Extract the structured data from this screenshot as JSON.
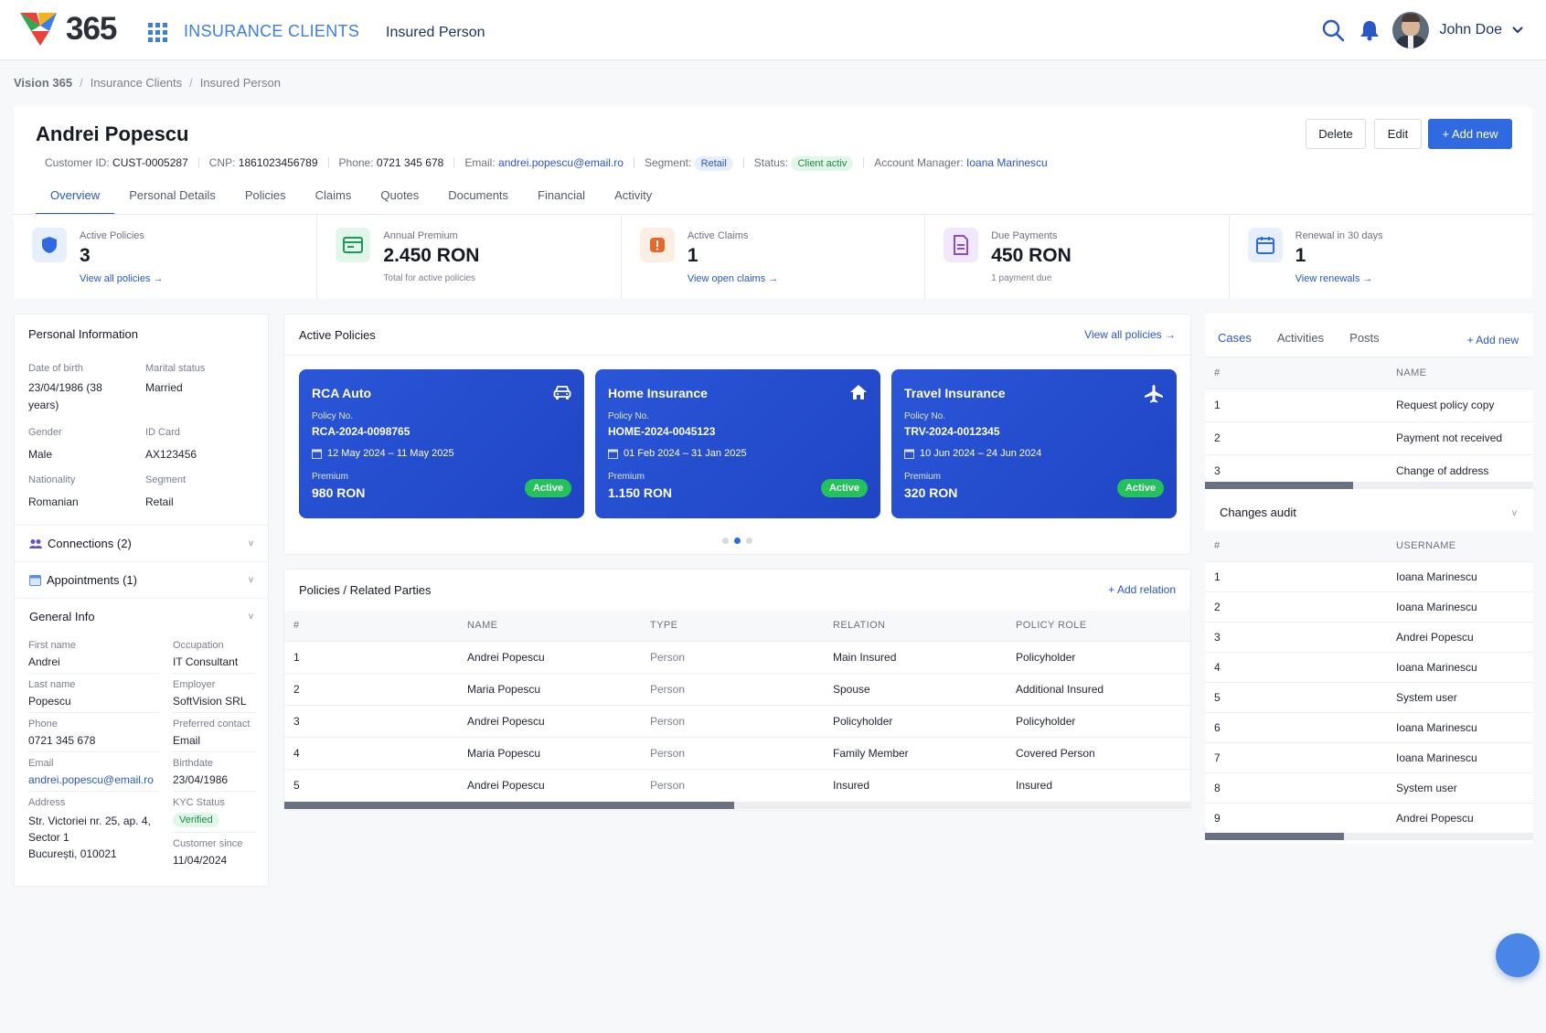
{
  "app": {
    "logo_text": "365",
    "app_name": "INSURANCE CLIENTS",
    "nav_title": "Insured Person",
    "user_name": "John Doe"
  },
  "breadcrumb": [
    "Vision 365",
    "Insurance Clients",
    "Insured Person"
  ],
  "customer": {
    "name": "Andrei Popescu",
    "meta": {
      "customer_id_label": "Customer ID:",
      "customer_id": "CUST-0005287",
      "cnp_label": "CNP:",
      "cnp": "1861023456789",
      "phone_label": "Phone:",
      "phone": "0721 345 678",
      "email_label": "Email:",
      "email": "andrei.popescu@email.ro",
      "segment_label": "Segment:",
      "segment": "Retail",
      "status_label": "Status:",
      "status": "Client activ",
      "manager_label": "Account Manager:",
      "manager": "Ioana Marinescu"
    }
  },
  "actions": {
    "delete": "Delete",
    "edit": "Edit",
    "add_new": "+ Add new"
  },
  "tabs": [
    "Overview",
    "Personal Details",
    "Policies",
    "Claims",
    "Quotes",
    "Documents",
    "Financial",
    "Activity"
  ],
  "kpis": [
    {
      "label": "Active Policies",
      "value": "3",
      "link": "View all policies →",
      "color": "#2f6ae0",
      "bg": "#e8effc",
      "icon": "shield-icon"
    },
    {
      "label": "Annual Premium",
      "value": "2.450 RON",
      "sub": "Total for active policies",
      "color": "#1d9a5a",
      "bg": "#e3f6ea",
      "icon": "card-icon"
    },
    {
      "label": "Active Claims",
      "value": "1",
      "link": "View open claims →",
      "color": "#e8672a",
      "bg": "#fdeee3",
      "icon": "alert-icon"
    },
    {
      "label": "Due Payments",
      "value": "450 RON",
      "sub": "1 payment due",
      "color": "#8a4bd6",
      "bg": "#f1e9fb",
      "icon": "invoice-icon"
    },
    {
      "label": "Renewal in 30 days",
      "value": "1",
      "link": "View renewals →",
      "color": "#2f6ae0",
      "bg": "#e8effc",
      "icon": "calendar-icon"
    }
  ],
  "personal_info": {
    "title": "Personal Information",
    "fields": [
      {
        "label": "Date of birth",
        "value": "23/04/1986 (38 years)"
      },
      {
        "label": "Marital status",
        "value": "Married"
      },
      {
        "label": "Gender",
        "value": "Male"
      },
      {
        "label": "ID Card",
        "value": "AX123456"
      },
      {
        "label": "Nationality",
        "value": "Romanian"
      },
      {
        "label": "Segment",
        "value": "Retail"
      }
    ]
  },
  "connections": {
    "label": "Connections (2)"
  },
  "appointments": {
    "label": "Appointments (1)"
  },
  "general_info": {
    "title": "General Info",
    "first_name_label": "First name",
    "first_name": "Andrei",
    "occupation_label": "Occupation",
    "occupation": "IT Consultant",
    "last_name_label": "Last name",
    "last_name": "Popescu",
    "employer_label": "Employer",
    "employer": "SoftVision SRL",
    "phone_label": "Phone",
    "phone": "0721 345 678",
    "preferred_label": "Preferred contact",
    "preferred": "Email",
    "email_label": "Email",
    "email": "andrei.popescu@email.ro",
    "birthdate_label": "Birthdate",
    "birthdate": "23/04/1986",
    "address_label": "Address",
    "address_1": "Str. Victoriei nr. 25, ap. 4,",
    "address_2": "Sector 1",
    "address_3": "București, 010021",
    "kyc_label": "KYC Status",
    "kyc": "Verified",
    "since_label": "Customer since",
    "since": "11/04/2024"
  },
  "active_policies": {
    "title": "Active Policies",
    "link": "View all policies →",
    "policy_no_label": "Policy No.",
    "premium_label": "Premium",
    "cards": [
      {
        "title": "RCA Auto",
        "policy_no": "RCA-2024-0098765",
        "dates": "12 May 2024 – 11 May 2025",
        "premium": "980 RON",
        "status": "Active",
        "icon": "car-icon"
      },
      {
        "title": "Home Insurance",
        "policy_no": "HOME-2024-0045123",
        "dates": "01 Feb 2024 – 31 Jan 2025",
        "premium": "1.150 RON",
        "status": "Active",
        "icon": "home-icon"
      },
      {
        "title": "Travel Insurance",
        "policy_no": "TRV-2024-0012345",
        "dates": "10 Jun 2024 – 24 Jun 2024",
        "premium": "320 RON",
        "status": "Active",
        "icon": "plane-icon"
      }
    ]
  },
  "related_parties": {
    "title": "Policies / Related Parties",
    "link": "+ Add relation",
    "columns": [
      "#",
      "NAME",
      "TYPE",
      "RELATION",
      "POLICY ROLE"
    ],
    "rows": [
      [
        "1",
        "Andrei Popescu",
        "Person",
        "Main Insured",
        "Policyholder"
      ],
      [
        "2",
        "Maria Popescu",
        "Person",
        "Spouse",
        "Additional Insured"
      ],
      [
        "3",
        "Andrei Popescu",
        "Person",
        "Policyholder",
        "Policyholder"
      ],
      [
        "4",
        "Maria Popescu",
        "Person",
        "Family Member",
        "Covered Person"
      ],
      [
        "5",
        "Andrei Popescu",
        "Person",
        "Insured",
        "Insured"
      ]
    ]
  },
  "right_tabs": [
    "Cases",
    "Activities",
    "Posts"
  ],
  "right_add": "+ Add new",
  "cases": {
    "columns": [
      "#",
      "NAME"
    ],
    "rows": [
      [
        "1",
        "Request policy copy"
      ],
      [
        "2",
        "Payment not received"
      ],
      [
        "3",
        "Change of address"
      ]
    ]
  },
  "audit": {
    "title": "Changes audit",
    "columns": [
      "#",
      "USERNAME"
    ],
    "rows": [
      [
        "1",
        "Ioana Marinescu"
      ],
      [
        "2",
        "Ioana Marinescu"
      ],
      [
        "3",
        "Andrei Popescu"
      ],
      [
        "4",
        "Ioana Marinescu"
      ],
      [
        "5",
        "System user"
      ],
      [
        "6",
        "Ioana Marinescu"
      ],
      [
        "7",
        "Ioana Marinescu"
      ],
      [
        "8",
        "System user"
      ],
      [
        "9",
        "Andrei Popescu"
      ]
    ]
  }
}
